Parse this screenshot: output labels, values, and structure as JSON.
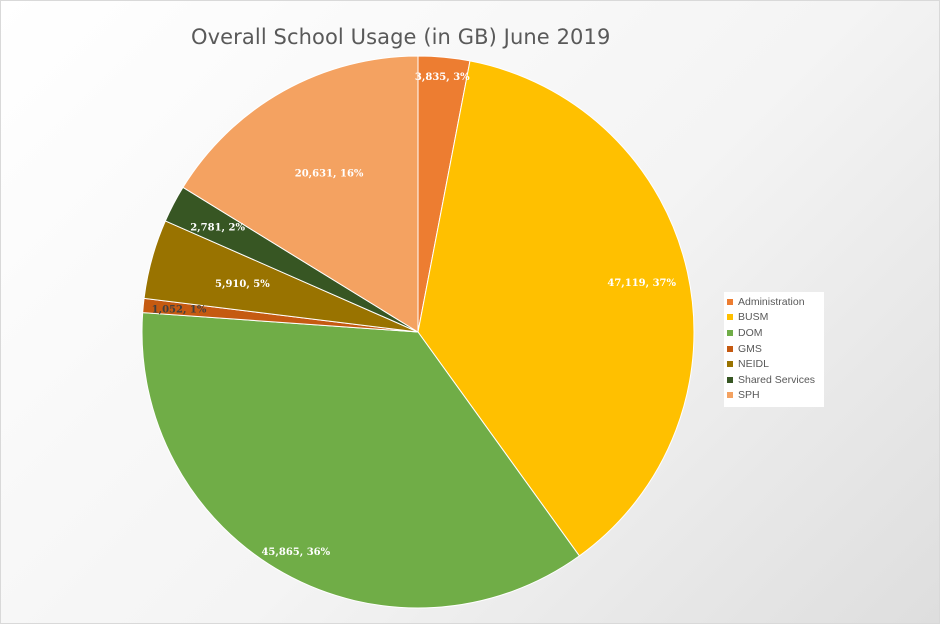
{
  "chart_data": {
    "type": "pie",
    "title": "Overall School Usage (in GB) June 2019",
    "start_angle_deg": 0,
    "direction": "clockwise",
    "legend_position": "right",
    "slices": [
      {
        "name": "Administration",
        "value": 3835,
        "label": "3,835, 3%",
        "color": "#ED7D31",
        "label_color": "#ffffff"
      },
      {
        "name": "BUSM",
        "value": 47119,
        "label": "47,119, 37%",
        "color": "#FFC000",
        "label_color": "#ffffff"
      },
      {
        "name": "DOM",
        "value": 45865,
        "label": "45,865, 36%",
        "color": "#70AD47",
        "label_color": "#ffffff"
      },
      {
        "name": "GMS",
        "value": 1052,
        "label": "1,052, 1%",
        "color": "#C55A11",
        "label_color": "#404040"
      },
      {
        "name": "NEIDL",
        "value": 5910,
        "label": "5,910, 5%",
        "color": "#997300",
        "label_color": "#ffffff"
      },
      {
        "name": "Shared Services",
        "value": 2781,
        "label": "2,781, 2%",
        "color": "#375623",
        "label_color": "#ffffff"
      },
      {
        "name": "SPH",
        "value": 20631,
        "label": "20,631, 16%",
        "color": "#F4A261",
        "label_color": "#ffffff"
      }
    ]
  }
}
